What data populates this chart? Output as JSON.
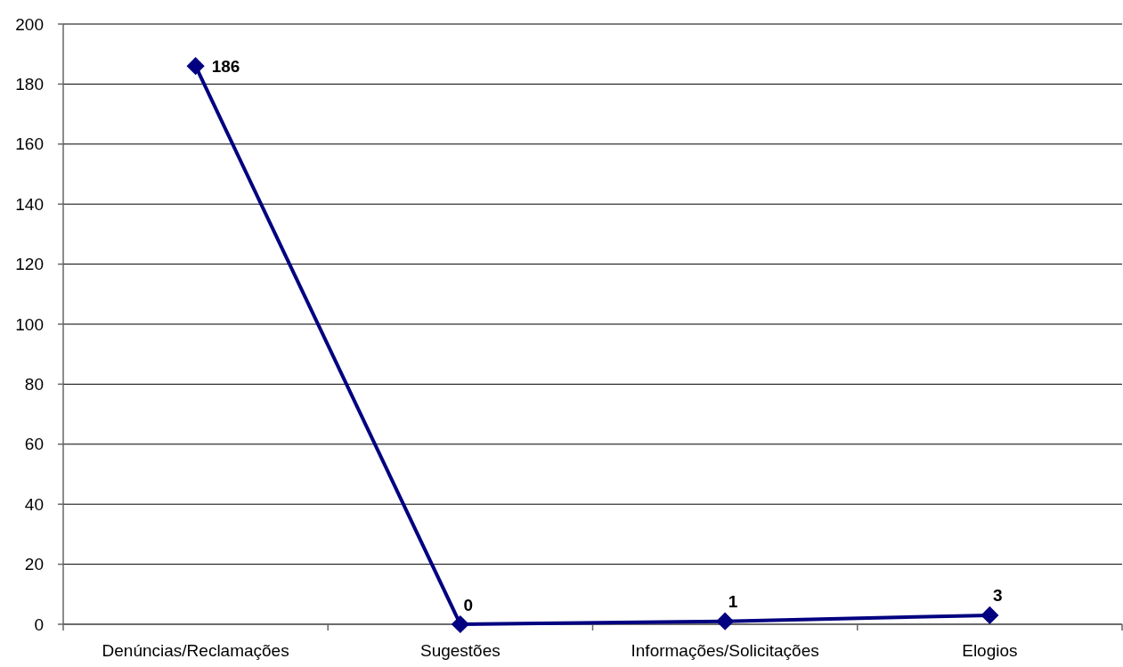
{
  "chart_data": {
    "type": "line",
    "categories": [
      "Denúncias/Reclamações",
      "Sugestões",
      "Informações/Solicitações",
      "Elogios"
    ],
    "series": [
      {
        "color": "#000080",
        "values": [
          186,
          0,
          1,
          3
        ]
      }
    ],
    "ylim": [
      0,
      200
    ],
    "yticks": [
      0,
      20,
      40,
      60,
      80,
      100,
      120,
      140,
      160,
      180,
      200
    ],
    "grid": "y",
    "marker": "diamond",
    "line_style": "solid",
    "data_labels": true
  }
}
